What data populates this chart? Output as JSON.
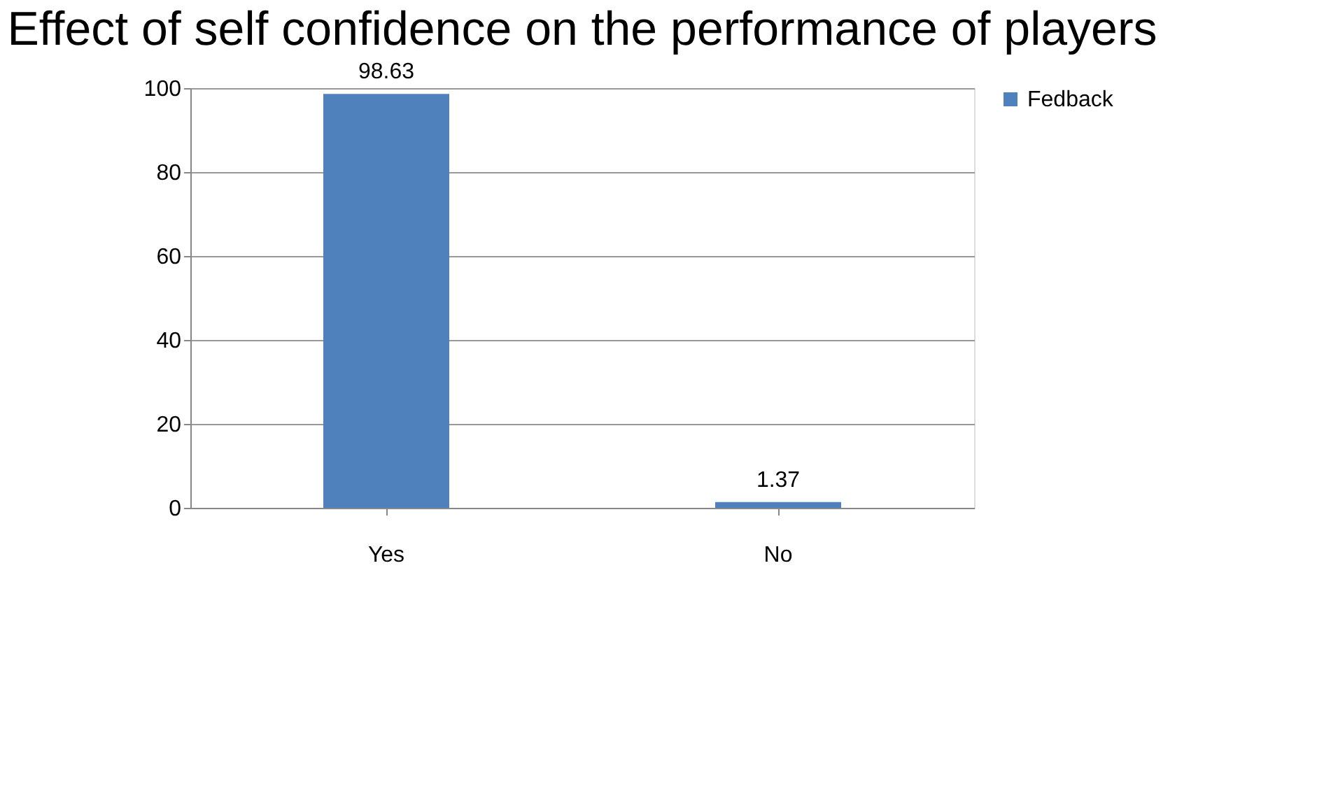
{
  "chart_data": {
    "type": "bar",
    "title": "Effect of self confidence on the performance of players",
    "categories": [
      "Yes",
      "No"
    ],
    "series": [
      {
        "name": "Fedback",
        "color": "#4f81bd",
        "values": [
          98.63,
          1.37
        ]
      }
    ],
    "ylim": [
      0,
      100
    ],
    "yticks": [
      0,
      20,
      40,
      60,
      80,
      100
    ],
    "grid": "y",
    "legend": "right",
    "data_labels": true
  }
}
